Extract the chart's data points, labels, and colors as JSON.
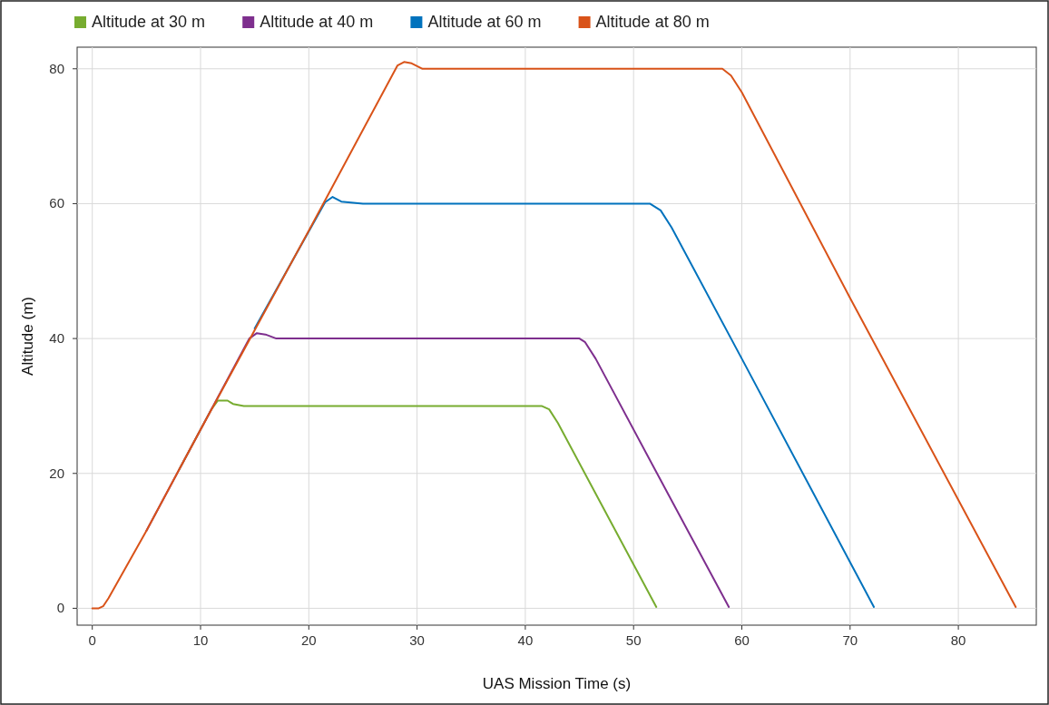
{
  "chart_data": {
    "type": "line",
    "xlabel": "UAS Mission Time (s)",
    "ylabel": "Altitude (m)",
    "xlim": [
      -1.4,
      87.2
    ],
    "ylim": [
      -2.5,
      83.2
    ],
    "xticks": [
      0,
      10,
      20,
      30,
      40,
      50,
      60,
      70,
      80
    ],
    "yticks": [
      0,
      20,
      40,
      60,
      80
    ],
    "grid": true,
    "legend": "top left",
    "marker": "none",
    "line_style": "solid",
    "series": [
      {
        "name": "Altitude at 30 m",
        "color": "#77ac30",
        "x": [
          8,
          11,
          11.6,
          12.5,
          13,
          14,
          41.5,
          42.2,
          43,
          47,
          52.1
        ],
        "values": [
          20.5,
          29.5,
          30.8,
          30.8,
          30.3,
          30,
          30,
          29.5,
          27.5,
          15.5,
          0.2
        ]
      },
      {
        "name": "Altitude at 40 m",
        "color": "#7e2f8e",
        "x": [
          5,
          10,
          14.5,
          15.2,
          16,
          17,
          45,
          45.5,
          46.5,
          52,
          58.8
        ],
        "values": [
          11.5,
          26.5,
          40,
          40.8,
          40.6,
          40,
          40,
          39.5,
          37,
          20.5,
          0.2
        ]
      },
      {
        "name": "Altitude at 60 m",
        "color": "#0072bd",
        "x": [
          15,
          21.5,
          22.2,
          23,
          25,
          51.5,
          52.5,
          53.5,
          60,
          72.2
        ],
        "values": [
          41.5,
          60.2,
          61,
          60.3,
          60,
          60,
          59,
          56.5,
          37,
          0.2
        ]
      },
      {
        "name": "Altitude at 80 m",
        "color": "#d95319",
        "x": [
          0,
          0.6,
          1,
          1.5,
          5,
          10,
          20,
          28.2,
          28.8,
          29.5,
          30.5,
          58.2,
          59,
          60,
          70,
          85.3
        ],
        "values": [
          0,
          0,
          0.3,
          1.5,
          11.5,
          26.5,
          56,
          80.5,
          81,
          80.8,
          80,
          80,
          79,
          76.5,
          46,
          0.2
        ]
      }
    ]
  }
}
